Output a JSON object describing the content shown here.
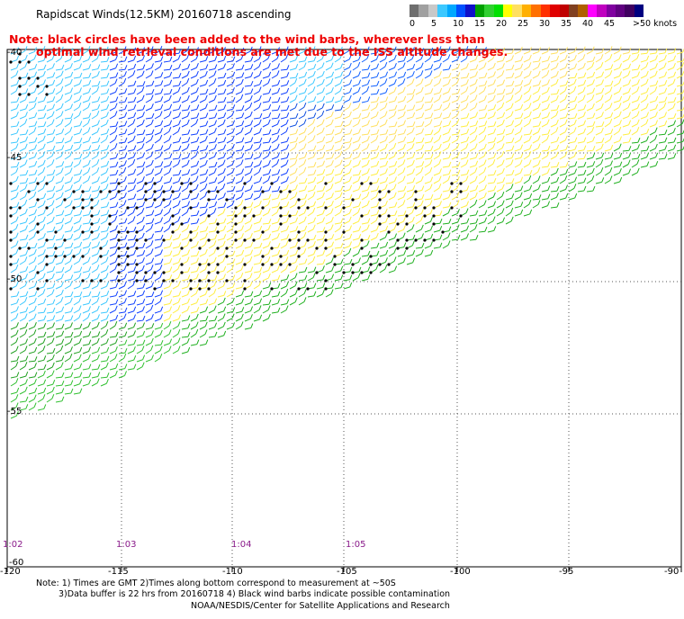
{
  "title": "Rapidscat Winds(12.5KM) 20160718 ascending",
  "note_line1": "Note: black circles have been added to the wind barbs, wherever less than",
  "note_line2": "optimal wind retrieval conditions are met due to the ISS altitude changes.",
  "legend": {
    "labels": [
      "0",
      "5",
      "10",
      "15",
      "20",
      "25",
      "30",
      "35",
      "40",
      "45",
      ">50 knots"
    ],
    "colors": [
      "#6e6e6e",
      "#a0a0a0",
      "#c8c8c8",
      "#3cc8ff",
      "#00a8ff",
      "#0050ff",
      "#1010c8",
      "#00a000",
      "#30d030",
      "#00e000",
      "#ffff00",
      "#ffe060",
      "#ffb000",
      "#ff7000",
      "#ff3000",
      "#e00000",
      "#c00000",
      "#804020",
      "#b06000",
      "#ff00ff",
      "#c000c0",
      "#8000a0",
      "#600080",
      "#400060",
      "#000080"
    ]
  },
  "lat_labels": [
    "-40",
    "-45",
    "-50",
    "-55",
    "-60"
  ],
  "lon_labels": [
    "-120",
    "-115",
    "-110",
    "-105",
    "-100",
    "-95",
    "-90"
  ],
  "time_labels": [
    "1:02",
    "1:03",
    "1:04",
    "1:05"
  ],
  "footer_line1": "Note: 1) Times are GMT 2)Times along bottom correspond to measurement at ~50S",
  "footer_line2": "3)Data buffer is 22 hrs from 20160718 4) Black wind barbs indicate possible contamination",
  "footer_line3": "NOAA/NESDIS/Center for Satellite Applications and Research"
}
